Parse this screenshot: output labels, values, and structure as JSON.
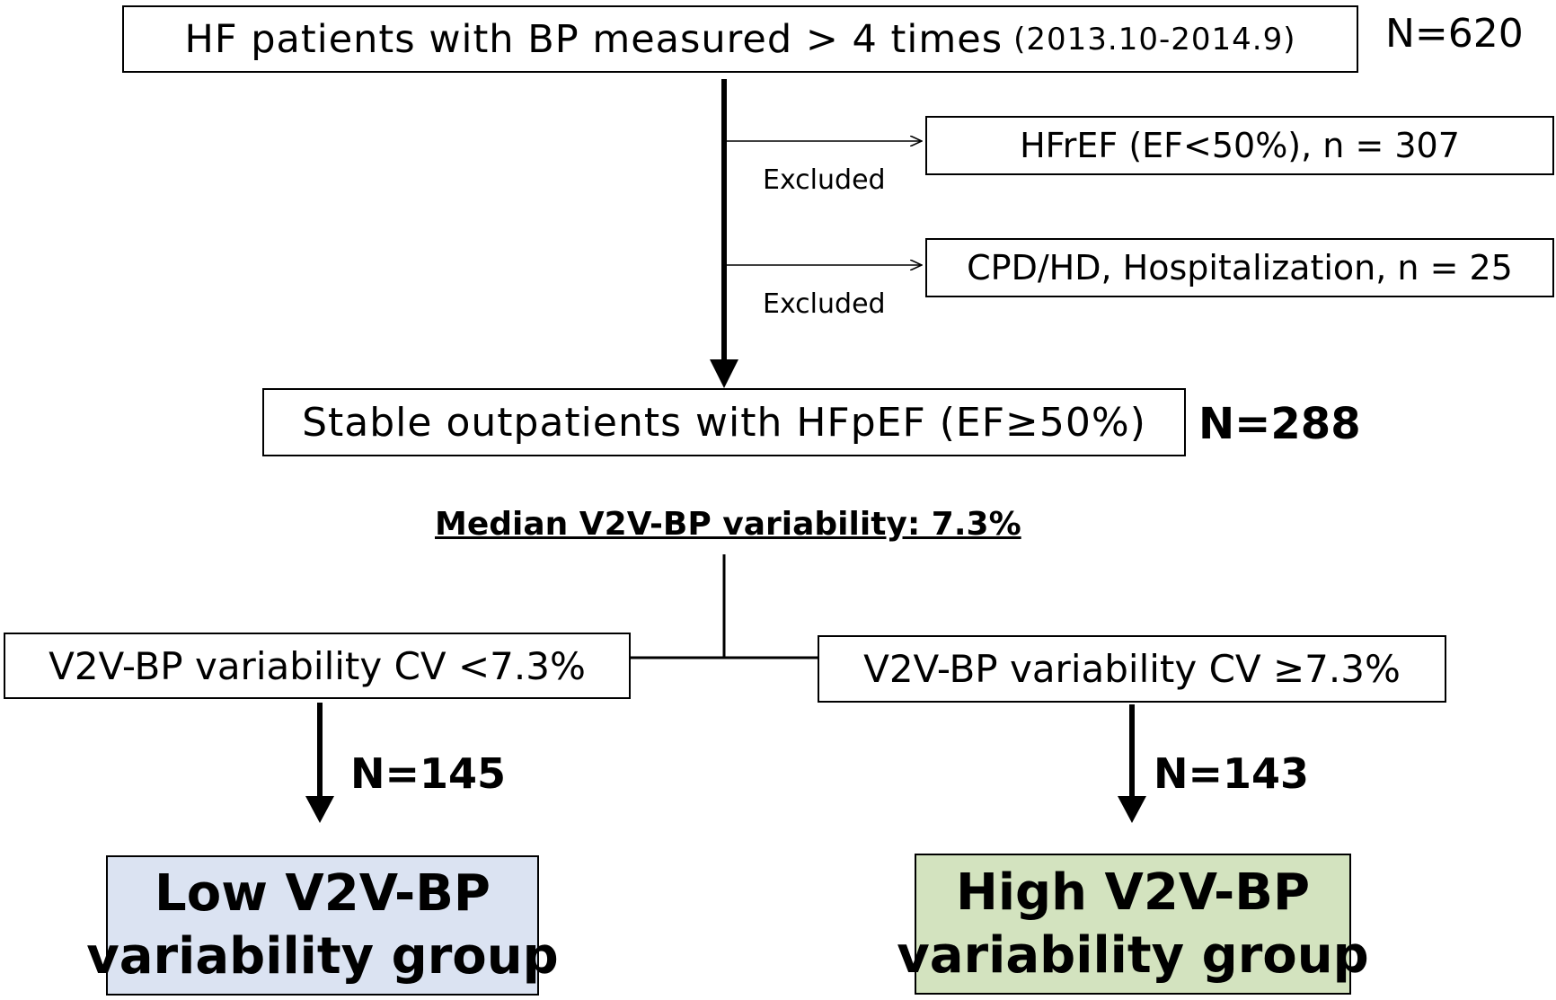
{
  "boxes": {
    "top": {
      "label": "HF patients with BP measured > 4 times",
      "date_range": "(2013.10-2014.9)",
      "count": "N=620"
    },
    "excl1": {
      "label": "HFrEF (EF<50%), n = 307",
      "tag": "Excluded"
    },
    "excl2": {
      "label": "CPD/HD, Hospitalization, n = 25",
      "tag": "Excluded"
    },
    "stable": {
      "label": "Stable outpatients with HFpEF (EF≥50%)",
      "count": "N=288"
    },
    "median": {
      "label": "Median V2V-BP variability: 7.3%"
    },
    "low_split": {
      "label": "V2V-BP variability CV <7.3%",
      "count": "N=145"
    },
    "high_split": {
      "label": "V2V-BP variability CV ≥7.3%",
      "count": "N=143"
    },
    "low_group": {
      "line1": "Low V2V-BP",
      "line2": "variability group",
      "fill": "#dbe3f2"
    },
    "high_group": {
      "line1": "High V2V-BP",
      "line2": "variability group",
      "fill": "#d3e3bf"
    }
  }
}
